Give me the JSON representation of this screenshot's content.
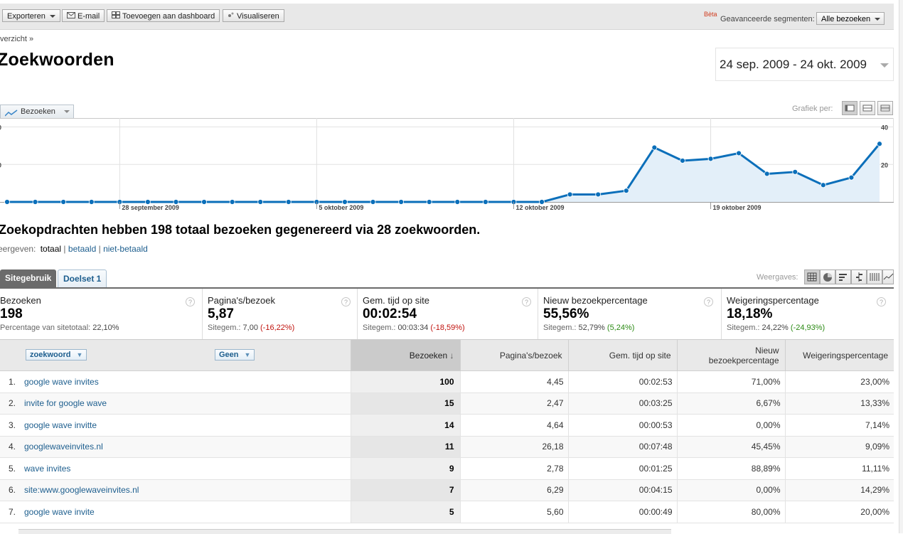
{
  "toolbar": {
    "export_label": "Exporteren",
    "email_label": "E-mail",
    "dashboard_label": "Toevoegen aan dashboard",
    "visualize_label": "Visualiseren",
    "beta_label": "Bèta",
    "segments_label": "Geavanceerde segmenten:",
    "segments_value": "Alle bezoeken"
  },
  "breadcrumb": "verzicht »",
  "page_title": "Zoekwoorden",
  "date_range": "24 sep. 2009 - 24 okt. 2009",
  "chart_controls": {
    "metric_label": "Bezoeken",
    "grafiek_label": "Grafiek per:"
  },
  "chart_data": {
    "type": "area",
    "series": [
      {
        "name": "Bezoeken",
        "values": [
          0,
          0,
          0,
          0,
          0,
          0,
          0,
          0,
          0,
          0,
          0,
          0,
          0,
          0,
          0,
          0,
          0,
          0,
          0,
          0,
          4,
          4,
          6,
          29,
          22,
          23,
          26,
          15,
          16,
          9,
          13,
          31
        ]
      }
    ],
    "ylim": [
      0,
      40
    ],
    "y_tick_labels_right": [
      "40",
      "20"
    ],
    "y_tick_labels_left": [
      "0",
      "0"
    ],
    "x_tick_labels": [
      {
        "index": 4,
        "label": "28 september 2009"
      },
      {
        "index": 11,
        "label": "5 oktober 2009"
      },
      {
        "index": 18,
        "label": "12 oktober 2009"
      },
      {
        "index": 25,
        "label": "19 oktober 2009"
      }
    ],
    "line_color": "#0b6fba",
    "fill_color": "#e3eff9",
    "grid": true
  },
  "summary": "Zoekopdrachten hebben 198 totaal bezoeken gegenereerd via 28 zoekwoorden.",
  "view_filter": {
    "label": "eergeven:",
    "current": "totaal",
    "sep": "|",
    "paid": "betaald",
    "unpaid": "niet-betaald"
  },
  "tabs": {
    "sitegebruik": "Sitegebruik",
    "doelset": "Doelset 1"
  },
  "weergaves_label": "Weergaves:",
  "scorecards": [
    {
      "name": "Bezoeken",
      "value": "198",
      "sub_label": "Percentage van sitetotaal:",
      "sub_value": "22,10%",
      "delta": "",
      "delta_kind": ""
    },
    {
      "name": "Pagina's/bezoek",
      "value": "5,87",
      "sub_label": "Sitegem.:",
      "sub_value": "7,00",
      "delta": "(-16,22%)",
      "delta_kind": "neg"
    },
    {
      "name": "Gem. tijd op site",
      "value": "00:02:54",
      "sub_label": "Sitegem.:",
      "sub_value": "00:03:34",
      "delta": "(-18,59%)",
      "delta_kind": "neg"
    },
    {
      "name": "Nieuw bezoekpercentage",
      "value": "55,56%",
      "sub_label": "Sitegem.:",
      "sub_value": "52,79%",
      "delta": "(5,24%)",
      "delta_kind": "pos"
    },
    {
      "name": "Weigeringspercentage",
      "value": "18,18%",
      "sub_label": "Sitegem.:",
      "sub_value": "24,22%",
      "delta": "(-24,93%)",
      "delta_kind": "pos"
    }
  ],
  "table": {
    "dimension_label": "zoekwoord",
    "secondary_dimension_label": "Geen",
    "headers": {
      "visits": "Bezoeken",
      "pages": "Pagina's/bezoek",
      "time": "Gem. tijd op site",
      "new_line1": "Nieuw",
      "new_line2": "bezoekpercentage",
      "bounce": "Weigeringspercentage"
    },
    "rows": [
      {
        "rank": "1.",
        "keyword": "google wave invites",
        "visits": "100",
        "pages": "4,45",
        "time": "00:02:53",
        "new": "71,00%",
        "bounce": "23,00%"
      },
      {
        "rank": "2.",
        "keyword": "invite for google wave",
        "visits": "15",
        "pages": "2,47",
        "time": "00:03:25",
        "new": "6,67%",
        "bounce": "13,33%"
      },
      {
        "rank": "3.",
        "keyword": "google wave invitte",
        "visits": "14",
        "pages": "4,64",
        "time": "00:00:53",
        "new": "0,00%",
        "bounce": "7,14%"
      },
      {
        "rank": "4.",
        "keyword": "googlewaveinvites.nl",
        "visits": "11",
        "pages": "26,18",
        "time": "00:07:48",
        "new": "45,45%",
        "bounce": "9,09%"
      },
      {
        "rank": "5.",
        "keyword": "wave invites",
        "visits": "9",
        "pages": "2,78",
        "time": "00:01:25",
        "new": "88,89%",
        "bounce": "11,11%"
      },
      {
        "rank": "6.",
        "keyword": "site:www.googlewaveinvites.nl",
        "visits": "7",
        "pages": "6,29",
        "time": "00:04:15",
        "new": "0,00%",
        "bounce": "14,29%"
      },
      {
        "rank": "7.",
        "keyword": "google wave invite",
        "visits": "5",
        "pages": "5,60",
        "time": "00:00:49",
        "new": "80,00%",
        "bounce": "20,00%"
      }
    ]
  }
}
